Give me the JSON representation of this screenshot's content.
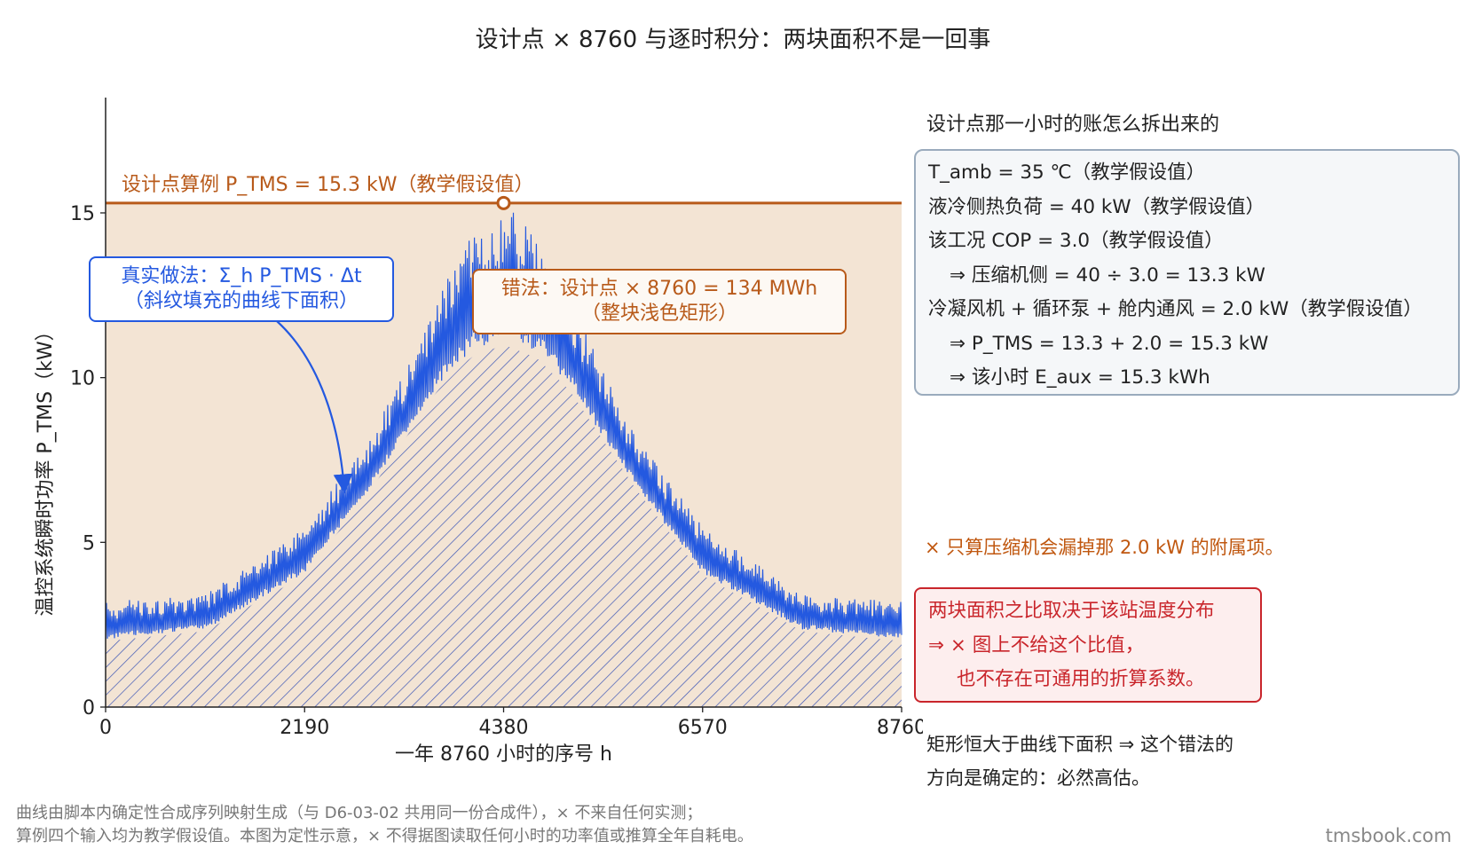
{
  "title": "设计点 × 8760 与逐时积分：两块面积不是一回事",
  "chart_data": {
    "type": "area",
    "xlabel": "一年 8760 小时的序号 h",
    "ylabel": "温控系统瞬时功率 P_TMS（kW）",
    "xlim": [
      0,
      8760
    ],
    "ylim": [
      0,
      18.5
    ],
    "x_ticks": [
      0,
      2190,
      4380,
      6570,
      8760
    ],
    "y_ticks": [
      0,
      5,
      10,
      15
    ],
    "grid": false,
    "series": [
      {
        "name": "P_TMS",
        "x": [
          0,
          1095,
          2190,
          2920,
          3650,
          4015,
          4380,
          4745,
          5110,
          5840,
          6570,
          7665,
          8760
        ],
        "y_lower": [
          2.0,
          2.3,
          4.0,
          6.6,
          9.6,
          10.6,
          11.0,
          10.6,
          9.6,
          6.6,
          4.0,
          2.3,
          2.0
        ],
        "y_upper": [
          3.2,
          3.4,
          5.5,
          8.2,
          12.3,
          14.6,
          15.3,
          14.6,
          12.3,
          8.2,
          5.5,
          3.4,
          3.2
        ],
        "color": "#2459e0"
      }
    ],
    "design_point": {
      "y": 15.3,
      "x": 4380,
      "color": "#b85a1a"
    },
    "annotations": {
      "design_label": "设计点算例 P_TMS = 15.3 kW（教学假设值）",
      "true_method": [
        "真实做法：Σ_h P_TMS · Δt",
        "（斜纹填充的曲线下面积）"
      ],
      "wrong_method": [
        "错法：设计点 × 8760 = 134 MWh",
        "（整块浅色矩形）"
      ]
    }
  },
  "side": {
    "heading": "设计点那一小时的账怎么拆出来的",
    "calc_lines": [
      "T_amb = 35 ℃（教学假设值）",
      "液冷侧热负荷 = 40 kW（教学假设值）",
      "该工况 COP = 3.0（教学假设值）",
      "⇒ 压缩机侧 = 40 ÷ 3.0 = 13.3 kW",
      "冷凝风机 + 循环泵 + 舱内通风 = 2.0 kW（教学假设值）",
      "⇒ P_TMS = 13.3 + 2.0 = 15.3 kW",
      "⇒ 该小时 E_aux = 15.3 kWh"
    ],
    "warn_note": "× 只算压缩机会漏掉那 2.0 kW 的附属项。",
    "red_box_lines": [
      "两块面积之比取决于该站温度分布",
      "⇒ × 图上不给这个比值，",
      "也不存在可通用的折算系数。"
    ],
    "conclusion_lines": [
      "矩形恒大于曲线下面积 ⇒ 这个错法的",
      "方向是确定的：必然高估。"
    ]
  },
  "footer": {
    "lines": [
      "曲线由脚本内确定性合成序列映射生成（与 D6-03-02 共用同一份合成件），× 不来自任何实测；",
      "算例四个输入均为教学假设值。本图为定性示意，× 不得据图读取任何小时的功率值或推算全年自耗电。"
    ],
    "brand": "tmsbook.com"
  }
}
